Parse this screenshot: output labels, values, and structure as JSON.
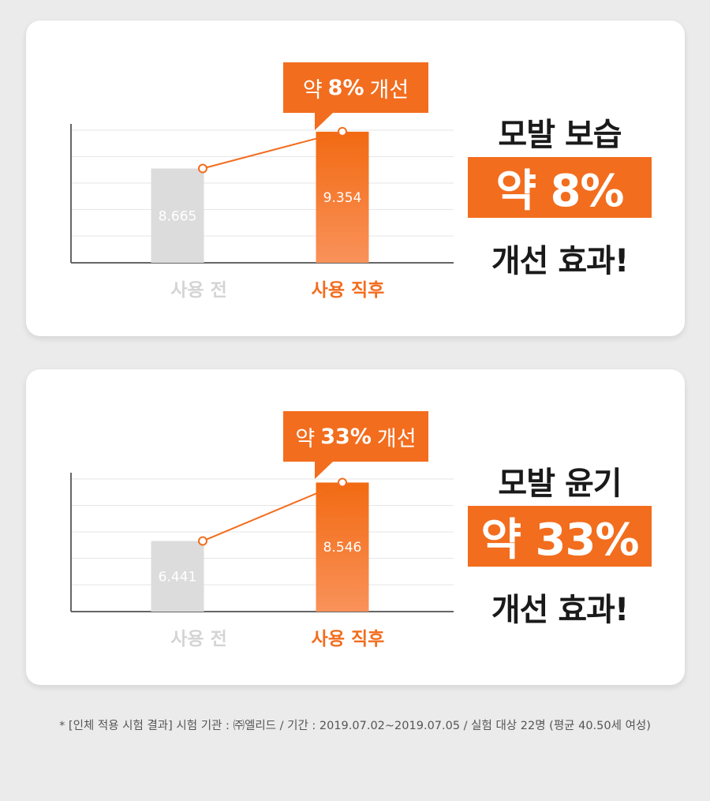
{
  "chart_data": [
    {
      "type": "bar",
      "categories": [
        "사용 전",
        "사용 직후"
      ],
      "values": [
        8.665,
        9.354
      ],
      "value_labels": [
        "8.665",
        "9.354"
      ],
      "ylim": [
        6.9,
        9.5
      ],
      "grid": true,
      "bar_colors": [
        "#dcdcdc",
        "#f26d1e"
      ],
      "line_overlay": true,
      "callout": {
        "prefix": "약",
        "value": "8%",
        "suffix": "개선"
      },
      "summary": {
        "title": "모발 보습",
        "highlight": "약 8%",
        "footer": "개선 효과!"
      }
    },
    {
      "type": "bar",
      "categories": [
        "사용 전",
        "사용 직후"
      ],
      "values": [
        6.441,
        8.546
      ],
      "value_labels": [
        "6.441",
        "8.546"
      ],
      "ylim": [
        3.9,
        8.9
      ],
      "grid": true,
      "bar_colors": [
        "#dcdcdc",
        "#f26d1e"
      ],
      "line_overlay": true,
      "callout": {
        "prefix": "약",
        "value": "33%",
        "suffix": "개선"
      },
      "summary": {
        "title": "모발 윤기",
        "highlight": "약 33%",
        "footer": "개선 효과!"
      }
    }
  ],
  "footnote": "* [인체 적용 시험 결과]  시험 기관 : ㈜엘리드 / 기간 : 2019.07.02~2019.07.05 / 실험 대상 22명 (평균 40.50세 여성)",
  "colors": {
    "accent": "#f26d1e",
    "before_bar": "#dcdcdc",
    "text_dark": "#1a1a1a"
  }
}
